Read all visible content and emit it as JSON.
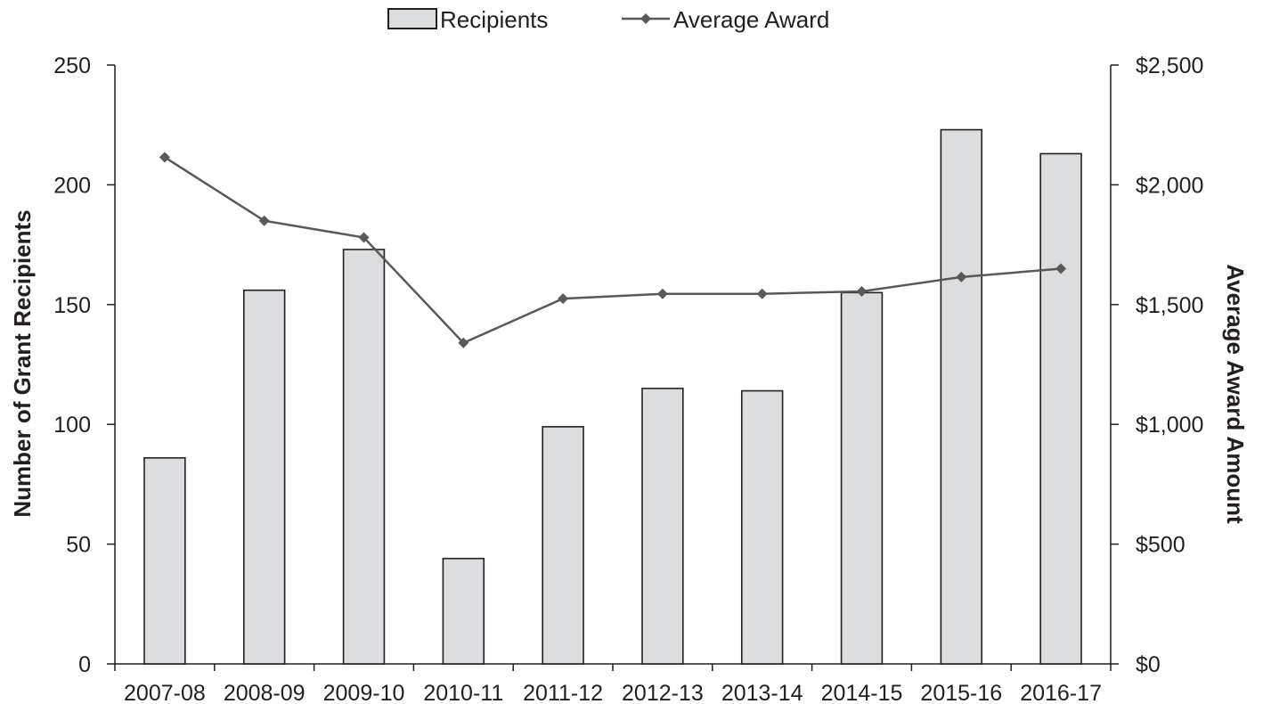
{
  "chart_data": {
    "type": "bar",
    "title": "",
    "categories": [
      "2007-08",
      "2008-09",
      "2009-10",
      "2010-11",
      "2011-12",
      "2012-13",
      "2013-14",
      "2014-15",
      "2015-16",
      "2016-17"
    ],
    "series": [
      {
        "name": "Recipients",
        "type": "bar",
        "axis": "left",
        "values": [
          86,
          156,
          173,
          44,
          99,
          115,
          114,
          155,
          223,
          213
        ],
        "color": "#dcdddf",
        "stroke": "#231f20"
      },
      {
        "name": "Average Award",
        "type": "line",
        "axis": "right",
        "marker": "diamond",
        "values": [
          2115,
          1850,
          1780,
          1340,
          1525,
          1545,
          1545,
          1555,
          1615,
          1650
        ],
        "color": "#595959"
      }
    ],
    "y_left": {
      "label": "Number of Grant Recipients",
      "lim": [
        0,
        250
      ],
      "ticks": [
        0,
        50,
        100,
        150,
        200,
        250
      ],
      "tick_labels": [
        "0",
        "50",
        "100",
        "150",
        "200",
        "250"
      ]
    },
    "y_right": {
      "label": "Average Award Amount",
      "lim": [
        0,
        2500
      ],
      "ticks": [
        0,
        500,
        1000,
        1500,
        2000,
        2500
      ],
      "tick_labels": [
        "$0",
        "$500",
        "$1,000",
        "$1,500",
        "$2,000",
        "$2,500"
      ]
    },
    "xlabel": "",
    "grid": false,
    "legend_position": "top-center"
  }
}
